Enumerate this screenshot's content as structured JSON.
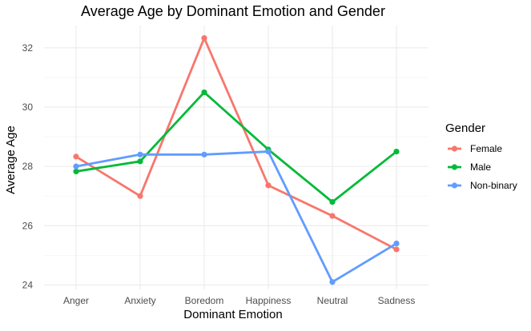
{
  "chart_data": {
    "type": "line",
    "title": "Average Age by Dominant Emotion and Gender",
    "xlabel": "Dominant Emotion",
    "ylabel": "Average Age",
    "categories": [
      "Anger",
      "Anxiety",
      "Boredom",
      "Happiness",
      "Neutral",
      "Sadness"
    ],
    "ylim": [
      23.85,
      32.75
    ],
    "yticks": [
      24,
      26,
      28,
      30,
      32
    ],
    "grid": true,
    "legend": {
      "title": "Gender",
      "position": "right"
    },
    "series": [
      {
        "name": "Female",
        "color": "#F8766D",
        "values": [
          28.33,
          27.0,
          32.33,
          27.36,
          26.33,
          25.2
        ]
      },
      {
        "name": "Male",
        "color": "#00BA38",
        "values": [
          27.83,
          28.17,
          30.5,
          28.57,
          26.8,
          28.5
        ]
      },
      {
        "name": "Non-binary",
        "color": "#619CFF",
        "values": [
          28.0,
          28.4,
          28.4,
          28.5,
          24.1,
          25.4
        ]
      }
    ]
  }
}
